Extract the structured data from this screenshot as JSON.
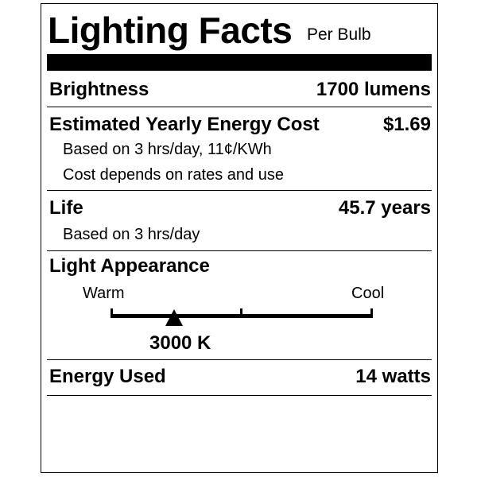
{
  "header": {
    "title": "Lighting Facts",
    "subtitle": "Per Bulb"
  },
  "brightness": {
    "label": "Brightness",
    "value": "1700 lumens"
  },
  "energy_cost": {
    "label": "Estimated Yearly Energy Cost",
    "value": "$1.69",
    "note1": "Based on 3 hrs/day, 11¢/KWh",
    "note2": "Cost depends on rates and use"
  },
  "life": {
    "label": "Life",
    "value": "45.7 years",
    "note": "Based on 3 hrs/day"
  },
  "light_appearance": {
    "label": "Light Appearance",
    "warm_label": "Warm",
    "cool_label": "Cool",
    "value": "3000 K",
    "scale_position_fraction": 0.24
  },
  "energy_used": {
    "label": "Energy Used",
    "value": "14 watts"
  }
}
